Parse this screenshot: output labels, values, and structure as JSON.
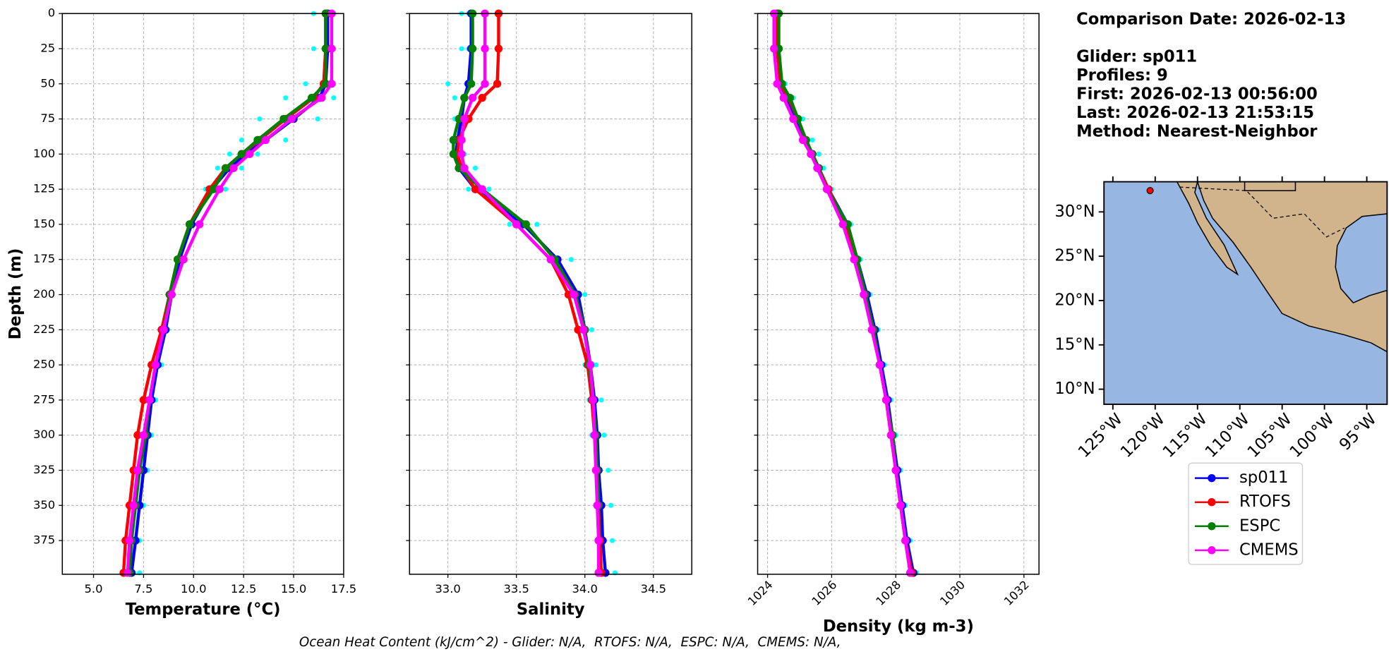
{
  "chart_data": [
    {
      "type": "line",
      "x_label": "Temperature (°C)",
      "y_label": "Depth (m)",
      "y": [
        0,
        25,
        50,
        60,
        75,
        90,
        100,
        110,
        125,
        150,
        175,
        200,
        225,
        250,
        275,
        300,
        325,
        350,
        375,
        398
      ],
      "xlim": [
        3.44,
        17.5
      ],
      "ylim": [
        0,
        399
      ],
      "grid": true,
      "xticks": [
        {
          "value": 5,
          "label": "5.0"
        },
        7.5,
        {
          "value": 10,
          "label": "10.0"
        },
        12.5,
        {
          "value": 15,
          "label": "15.0"
        },
        17.5
      ],
      "yticks": [
        0,
        25,
        50,
        75,
        100,
        125,
        150,
        175,
        200,
        225,
        250,
        275,
        300,
        325,
        350,
        375
      ],
      "series": [
        {
          "color": "#00ffff",
          "linestyle": "none",
          "values": [
            16.0,
            16.0,
            15.6,
            14.6,
            13.3,
            12.4,
            11.8,
            11.2,
            10.6,
            9.8,
            9.2,
            8.8,
            8.5,
            8.2,
            7.9,
            7.7,
            7.5,
            7.3,
            7.2,
            7.0
          ]
        },
        {
          "color": "#00ffff",
          "linestyle": "none",
          "values": [
            17.0,
            17.0,
            17.0,
            17.0,
            16.2,
            14.6,
            13.2,
            12.4,
            11.6,
            10.2,
            9.4,
            9.0,
            8.7,
            8.4,
            8.1,
            7.9,
            7.7,
            7.5,
            7.3,
            7.3
          ]
        },
        {
          "name": "sp011",
          "color": "#0000ff",
          "values": [
            16.7,
            16.7,
            16.6,
            16.3,
            15.0,
            13.6,
            12.6,
            11.8,
            10.9,
            9.9,
            9.3,
            8.9,
            8.6,
            8.2,
            7.9,
            7.7,
            7.5,
            7.3,
            7.1,
            6.9
          ]
        },
        {
          "name": "RTOFS",
          "color": "#ff0000",
          "values": [
            16.6,
            16.6,
            16.5,
            16.0,
            14.6,
            13.3,
            12.4,
            11.6,
            10.8,
            9.8,
            9.2,
            8.8,
            8.4,
            7.9,
            7.5,
            7.2,
            7.0,
            6.8,
            6.6,
            6.5
          ]
        },
        {
          "name": "ESPC",
          "color": "#008000",
          "values": [
            16.6,
            16.6,
            16.6,
            15.9,
            14.5,
            13.2,
            12.4,
            11.6,
            11.0,
            9.8,
            9.2,
            8.8,
            8.5,
            8.1,
            7.8,
            7.6,
            7.3,
            7.1,
            6.9,
            6.8
          ]
        },
        {
          "name": "CMEMS",
          "color": "#ff00ff",
          "values": [
            16.9,
            16.9,
            16.9,
            16.4,
            14.9,
            13.6,
            12.8,
            12.0,
            11.3,
            10.3,
            9.5,
            8.9,
            8.5,
            8.1,
            7.8,
            7.5,
            7.2,
            7.0,
            6.8,
            6.7
          ]
        }
      ]
    },
    {
      "type": "line",
      "x_label": "Salinity",
      "y": [
        0,
        25,
        50,
        60,
        75,
        90,
        100,
        110,
        125,
        150,
        175,
        200,
        225,
        250,
        275,
        300,
        325,
        350,
        375,
        398
      ],
      "xlim": [
        32.72,
        34.78
      ],
      "ylim": [
        0,
        399
      ],
      "grid": true,
      "xticks": [
        {
          "value": 33,
          "label": "33.0"
        },
        33.5,
        {
          "value": 34,
          "label": "34.0"
        },
        34.5
      ],
      "yticks": [
        0,
        25,
        50,
        75,
        100,
        125,
        150,
        175,
        200,
        225,
        250,
        275,
        300,
        325,
        350,
        375
      ],
      "series": [
        {
          "color": "#00ffff",
          "linestyle": "none",
          "values": [
            33.1,
            33.1,
            33.0,
            33.05,
            33.05,
            33.05,
            33.05,
            33.07,
            33.15,
            33.45,
            33.75,
            33.9,
            33.97,
            34.0,
            34.03,
            34.05,
            34.07,
            34.09,
            34.12,
            34.14
          ]
        },
        {
          "color": "#00ffff",
          "linestyle": "none",
          "values": [
            33.15,
            33.15,
            33.15,
            33.12,
            33.1,
            33.1,
            33.12,
            33.2,
            33.3,
            33.65,
            33.9,
            34.0,
            34.05,
            34.08,
            34.12,
            34.14,
            34.17,
            34.19,
            34.2,
            34.22
          ]
        },
        {
          "name": "sp011",
          "color": "#0000ff",
          "values": [
            33.17,
            33.17,
            33.15,
            33.12,
            33.1,
            33.07,
            33.06,
            33.08,
            33.2,
            33.55,
            33.8,
            33.95,
            34.0,
            34.04,
            34.07,
            34.09,
            34.1,
            34.12,
            34.13,
            34.15
          ]
        },
        {
          "name": "RTOFS",
          "color": "#ff0000",
          "values": [
            33.37,
            33.37,
            33.36,
            33.25,
            33.15,
            33.08,
            33.07,
            33.1,
            33.2,
            33.5,
            33.75,
            33.88,
            33.95,
            34.02,
            34.05,
            34.07,
            34.09,
            34.1,
            34.11,
            34.12
          ]
        },
        {
          "name": "ESPC",
          "color": "#008000",
          "values": [
            33.18,
            33.18,
            33.17,
            33.12,
            33.08,
            33.04,
            33.04,
            33.08,
            33.25,
            33.57,
            33.78,
            33.93,
            34.0,
            34.03,
            34.06,
            34.08,
            34.09,
            34.1,
            34.1,
            34.1
          ]
        },
        {
          "name": "CMEMS",
          "color": "#ff00ff",
          "values": [
            33.27,
            33.27,
            33.27,
            33.18,
            33.12,
            33.1,
            33.1,
            33.12,
            33.25,
            33.5,
            33.75,
            33.92,
            33.99,
            34.04,
            34.06,
            34.07,
            34.08,
            34.09,
            34.1,
            34.1
          ]
        }
      ]
    },
    {
      "type": "line",
      "x_label": "Density (kg m-3)",
      "y": [
        0,
        25,
        50,
        60,
        75,
        90,
        100,
        110,
        125,
        150,
        175,
        200,
        225,
        250,
        275,
        300,
        325,
        350,
        375,
        398
      ],
      "xlim": [
        1023.69,
        1032.47
      ],
      "ylim": [
        0,
        399
      ],
      "grid": true,
      "xticks": [
        1024,
        1026,
        1028,
        1030,
        1032
      ],
      "yticks": [
        0,
        25,
        50,
        75,
        100,
        125,
        150,
        175,
        200,
        225,
        250,
        275,
        300,
        325,
        350,
        375
      ],
      "series": [
        {
          "color": "#00ffff",
          "linestyle": "none",
          "values": [
            1024.2,
            1024.2,
            1024.3,
            1024.5,
            1024.8,
            1025.1,
            1025.3,
            1025.5,
            1025.8,
            1026.4,
            1026.75,
            1027.05,
            1027.3,
            1027.5,
            1027.7,
            1027.85,
            1028.0,
            1028.15,
            1028.3,
            1028.5
          ]
        },
        {
          "color": "#00ffff",
          "linestyle": "none",
          "values": [
            1024.4,
            1024.4,
            1024.55,
            1024.8,
            1025.1,
            1025.4,
            1025.6,
            1025.75,
            1026.0,
            1026.6,
            1026.9,
            1027.2,
            1027.45,
            1027.65,
            1027.85,
            1028.0,
            1028.15,
            1028.3,
            1028.45,
            1028.65
          ]
        },
        {
          "name": "sp011",
          "color": "#0000ff",
          "values": [
            1024.3,
            1024.3,
            1024.4,
            1024.6,
            1024.9,
            1025.2,
            1025.4,
            1025.6,
            1025.9,
            1026.5,
            1026.8,
            1027.1,
            1027.35,
            1027.55,
            1027.75,
            1027.9,
            1028.05,
            1028.2,
            1028.35,
            1028.55
          ]
        },
        {
          "name": "RTOFS",
          "color": "#ff0000",
          "values": [
            1024.3,
            1024.3,
            1024.4,
            1024.65,
            1024.95,
            1025.2,
            1025.4,
            1025.6,
            1025.9,
            1026.45,
            1026.75,
            1027.05,
            1027.3,
            1027.5,
            1027.7,
            1027.85,
            1028.0,
            1028.15,
            1028.3,
            1028.5
          ]
        },
        {
          "name": "ESPC",
          "color": "#008000",
          "values": [
            1024.35,
            1024.35,
            1024.45,
            1024.7,
            1024.95,
            1025.2,
            1025.4,
            1025.6,
            1025.85,
            1026.5,
            1026.8,
            1027.05,
            1027.3,
            1027.5,
            1027.7,
            1027.9,
            1028.0,
            1028.15,
            1028.3,
            1028.45
          ]
        },
        {
          "name": "CMEMS",
          "color": "#ff00ff",
          "values": [
            1024.2,
            1024.2,
            1024.3,
            1024.5,
            1024.8,
            1025.1,
            1025.35,
            1025.55,
            1025.85,
            1026.35,
            1026.7,
            1027.0,
            1027.25,
            1027.5,
            1027.7,
            1027.85,
            1028.0,
            1028.15,
            1028.3,
            1028.45
          ]
        }
      ]
    }
  ],
  "info": [
    "Comparison Date: 2026-02-13",
    "Glider: sp011",
    "Profiles: 9",
    "First: 2026-02-13 00:56:00",
    "Last: 2026-02-13 21:53:15",
    "Method: Nearest-Neighbor"
  ],
  "map": {
    "lonlim": [
      -126.05,
      -92.6
    ],
    "latlim": [
      8.3,
      33.4
    ],
    "lat_ticks": [
      {
        "value": 30,
        "label": "30°N"
      },
      {
        "value": 25,
        "label": "25°N"
      },
      {
        "value": 20,
        "label": "20°N"
      },
      {
        "value": 15,
        "label": "15°N"
      },
      {
        "value": 10,
        "label": "10°N"
      }
    ],
    "lon_ticks": [
      {
        "value": -125,
        "label": "125°W"
      },
      {
        "value": -120,
        "label": "120°W"
      },
      {
        "value": -115,
        "label": "115°W"
      },
      {
        "value": -110,
        "label": "110°W"
      },
      {
        "value": -105,
        "label": "105°W"
      },
      {
        "value": -100,
        "label": "100°W"
      },
      {
        "value": -95,
        "label": "95°W"
      }
    ],
    "glider": {
      "lon": -120.6,
      "lat": 32.4,
      "color": "#ff0000"
    }
  },
  "footer": "Ocean Heat Content (kJ/cm^2) - Glider: N/A,  RTOFS: N/A,  ESPC: N/A,  CMEMS: N/A,"
}
